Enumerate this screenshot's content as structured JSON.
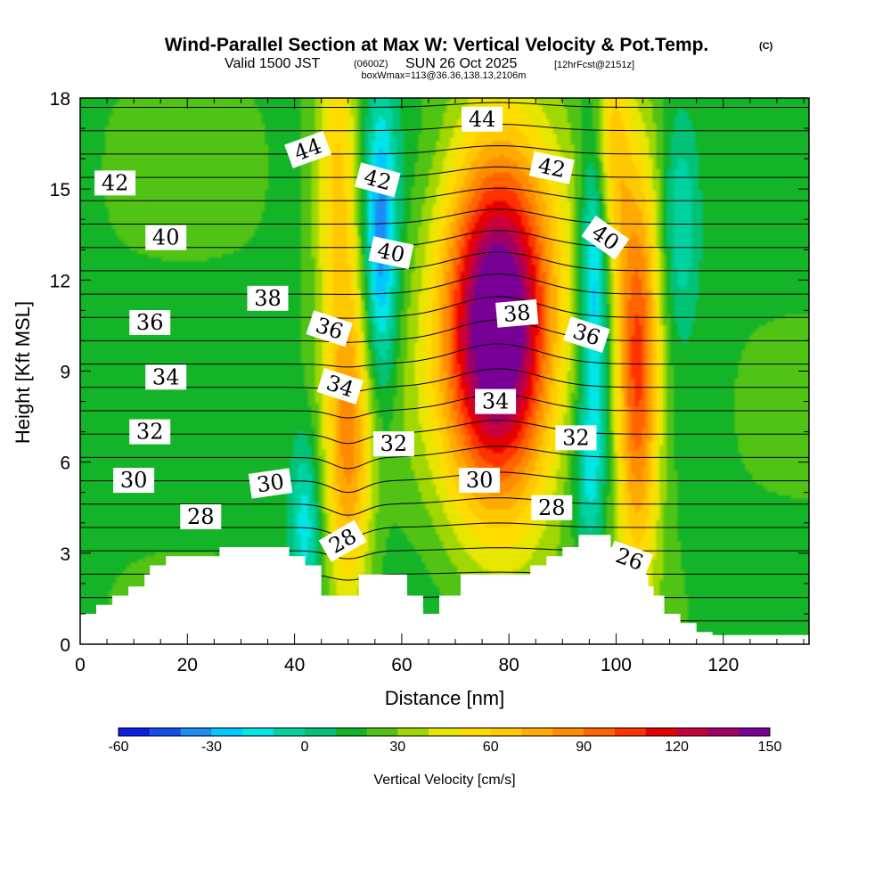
{
  "chart_data": {
    "type": "heatmap",
    "title": "Wind-Parallel Section at Max W: Vertical Velocity & Pot.Temp.",
    "copyright": "(C)",
    "subtitle_a": "Valid 1500 JST",
    "subtitle_b": "(0600Z)",
    "subtitle_c": "SUN 26 Oct 2025",
    "subtitle_d": "[12hrFcst@2151z]",
    "subtitle2": "boxWmax=113@36.36,138.13,2106m",
    "xlabel": "Distance [nm]",
    "ylabel": "Height [Kft MSL]",
    "xlim": [
      0,
      136
    ],
    "ylim": [
      0,
      18
    ],
    "xticks": [
      "0",
      "20",
      "40",
      "60",
      "80",
      "100",
      "120"
    ],
    "xtick_values": [
      0,
      20,
      40,
      60,
      80,
      100,
      120
    ],
    "yticks": [
      "0",
      "3",
      "6",
      "9",
      "12",
      "15",
      "18"
    ],
    "ytick_values": [
      0,
      3,
      6,
      9,
      12,
      15,
      18
    ],
    "colorbar": {
      "label": "Vertical Velocity [cm/s]",
      "tick_labels": [
        "-60",
        "-30",
        "0",
        "30",
        "60",
        "90",
        "120",
        "150"
      ],
      "tick_values": [
        -60,
        -30,
        0,
        30,
        60,
        90,
        120,
        150
      ],
      "levels": [
        -60,
        -50,
        -40,
        -30,
        -20,
        -10,
        0,
        10,
        20,
        30,
        40,
        50,
        60,
        70,
        80,
        90,
        100,
        110,
        120,
        130,
        140,
        150
      ],
      "colors": [
        "#0a1ee6",
        "#1450f0",
        "#1e8cf5",
        "#00c8ff",
        "#00e6e6",
        "#00d2a0",
        "#00c378",
        "#14b428",
        "#50c314",
        "#a0d700",
        "#e6e600",
        "#ffdc00",
        "#ffc800",
        "#ffaa00",
        "#ff8c00",
        "#ff6400",
        "#ff3200",
        "#e60000",
        "#c8003c",
        "#a00064",
        "#780096"
      ]
    },
    "updraft_cores": [
      {
        "x": 78,
        "y": 10.5,
        "peak": 150,
        "sx": 7.5,
        "sy": 4.2
      },
      {
        "x": 50,
        "y": 6.5,
        "peak": 62,
        "sx": 3.2,
        "sy": 4.0
      },
      {
        "x": 104,
        "y": 9.0,
        "peak": 90,
        "sx": 3.0,
        "sy": 4.5
      },
      {
        "x": 48,
        "y": 15.5,
        "peak": 45,
        "sx": 3.0,
        "sy": 3.5
      },
      {
        "x": 99,
        "y": 16.5,
        "peak": 40,
        "sx": 2.5,
        "sy": 3.0
      }
    ],
    "downdraft_cores": [
      {
        "x": 56,
        "y": 13.0,
        "peak": -55,
        "sx": 2.2,
        "sy": 3.5
      },
      {
        "x": 96,
        "y": 12.5,
        "peak": -55,
        "sx": 2.0,
        "sy": 3.5
      },
      {
        "x": 112,
        "y": 14.0,
        "peak": -30,
        "sx": 2.5,
        "sy": 2.5
      },
      {
        "x": 42,
        "y": 4.0,
        "peak": -35,
        "sx": 2.0,
        "sy": 2.0
      },
      {
        "x": 95,
        "y": 5.5,
        "peak": -30,
        "sx": 2.0,
        "sy": 2.0
      }
    ],
    "terrain_height": [
      [
        0,
        1.0
      ],
      [
        3,
        1.0
      ],
      [
        3,
        1.3
      ],
      [
        6,
        1.3
      ],
      [
        6,
        1.6
      ],
      [
        9,
        1.6
      ],
      [
        9,
        1.9
      ],
      [
        12,
        1.9
      ],
      [
        12,
        2.3
      ],
      [
        13,
        2.3
      ],
      [
        13,
        2.6
      ],
      [
        16,
        2.6
      ],
      [
        16,
        2.9
      ],
      [
        26,
        2.9
      ],
      [
        26,
        3.2
      ],
      [
        39,
        3.2
      ],
      [
        39,
        2.9
      ],
      [
        42,
        2.9
      ],
      [
        42,
        2.6
      ],
      [
        45,
        2.6
      ],
      [
        45,
        1.6
      ],
      [
        52,
        1.6
      ],
      [
        52,
        2.3
      ],
      [
        61,
        2.3
      ],
      [
        61,
        1.6
      ],
      [
        64,
        1.6
      ],
      [
        64,
        1.0
      ],
      [
        67,
        1.0
      ],
      [
        67,
        1.6
      ],
      [
        71,
        1.6
      ],
      [
        71,
        2.3
      ],
      [
        84,
        2.3
      ],
      [
        84,
        2.6
      ],
      [
        87,
        2.6
      ],
      [
        87,
        2.9
      ],
      [
        90,
        2.9
      ],
      [
        90,
        3.2
      ],
      [
        93,
        3.2
      ],
      [
        93,
        3.6
      ],
      [
        99,
        3.6
      ],
      [
        99,
        3.2
      ],
      [
        100,
        3.2
      ],
      [
        100,
        2.9
      ],
      [
        103,
        2.9
      ],
      [
        103,
        2.6
      ],
      [
        104,
        2.6
      ],
      [
        104,
        2.3
      ],
      [
        106,
        2.3
      ],
      [
        106,
        1.9
      ],
      [
        107,
        1.9
      ],
      [
        107,
        1.6
      ],
      [
        109,
        1.6
      ],
      [
        109,
        1.0
      ],
      [
        112,
        1.0
      ],
      [
        112,
        0.7
      ],
      [
        115,
        0.7
      ],
      [
        115,
        0.4
      ],
      [
        118,
        0.4
      ],
      [
        118,
        0.3
      ],
      [
        136,
        0.3
      ]
    ],
    "theta_levels": [
      22,
      23,
      24,
      25,
      26,
      27,
      28,
      29,
      30,
      31,
      32,
      33,
      34,
      35,
      36,
      37,
      38,
      39,
      40,
      41,
      42,
      43,
      44,
      45
    ],
    "theta_labels": [
      {
        "text": "44",
        "x": 42.5,
        "y": 16.3,
        "angle": -20
      },
      {
        "text": "44",
        "x": 75,
        "y": 17.3,
        "angle": 0
      },
      {
        "text": "42",
        "x": 6.5,
        "y": 15.2,
        "angle": 0
      },
      {
        "text": "42",
        "x": 55.5,
        "y": 15.3,
        "angle": 15
      },
      {
        "text": "42",
        "x": 88,
        "y": 15.7,
        "angle": 12
      },
      {
        "text": "40",
        "x": 16,
        "y": 13.4,
        "angle": 0
      },
      {
        "text": "40",
        "x": 58,
        "y": 12.9,
        "angle": 12
      },
      {
        "text": "40",
        "x": 98,
        "y": 13.4,
        "angle": 35
      },
      {
        "text": "38",
        "x": 35,
        "y": 11.4,
        "angle": 0
      },
      {
        "text": "38",
        "x": 81.5,
        "y": 10.9,
        "angle": -5
      },
      {
        "text": "36",
        "x": 13,
        "y": 10.6,
        "angle": 0
      },
      {
        "text": "36",
        "x": 46.5,
        "y": 10.4,
        "angle": 18
      },
      {
        "text": "36",
        "x": 94.5,
        "y": 10.2,
        "angle": 18
      },
      {
        "text": "34",
        "x": 16,
        "y": 8.8,
        "angle": 0
      },
      {
        "text": "34",
        "x": 48.5,
        "y": 8.5,
        "angle": 18
      },
      {
        "text": "34",
        "x": 77.5,
        "y": 8.0,
        "angle": 0
      },
      {
        "text": "32",
        "x": 13,
        "y": 7.0,
        "angle": 0
      },
      {
        "text": "32",
        "x": 58.5,
        "y": 6.6,
        "angle": 0
      },
      {
        "text": "32",
        "x": 92.5,
        "y": 6.8,
        "angle": 0
      },
      {
        "text": "30",
        "x": 10,
        "y": 5.4,
        "angle": 0
      },
      {
        "text": "30",
        "x": 35.5,
        "y": 5.3,
        "angle": -8
      },
      {
        "text": "30",
        "x": 74.5,
        "y": 5.4,
        "angle": 0
      },
      {
        "text": "28",
        "x": 22.5,
        "y": 4.2,
        "angle": 0
      },
      {
        "text": "28",
        "x": 49,
        "y": 3.4,
        "angle": -30
      },
      {
        "text": "28",
        "x": 88,
        "y": 4.5,
        "angle": 0
      },
      {
        "text": "26",
        "x": 102.5,
        "y": 2.8,
        "angle": 20
      }
    ]
  }
}
